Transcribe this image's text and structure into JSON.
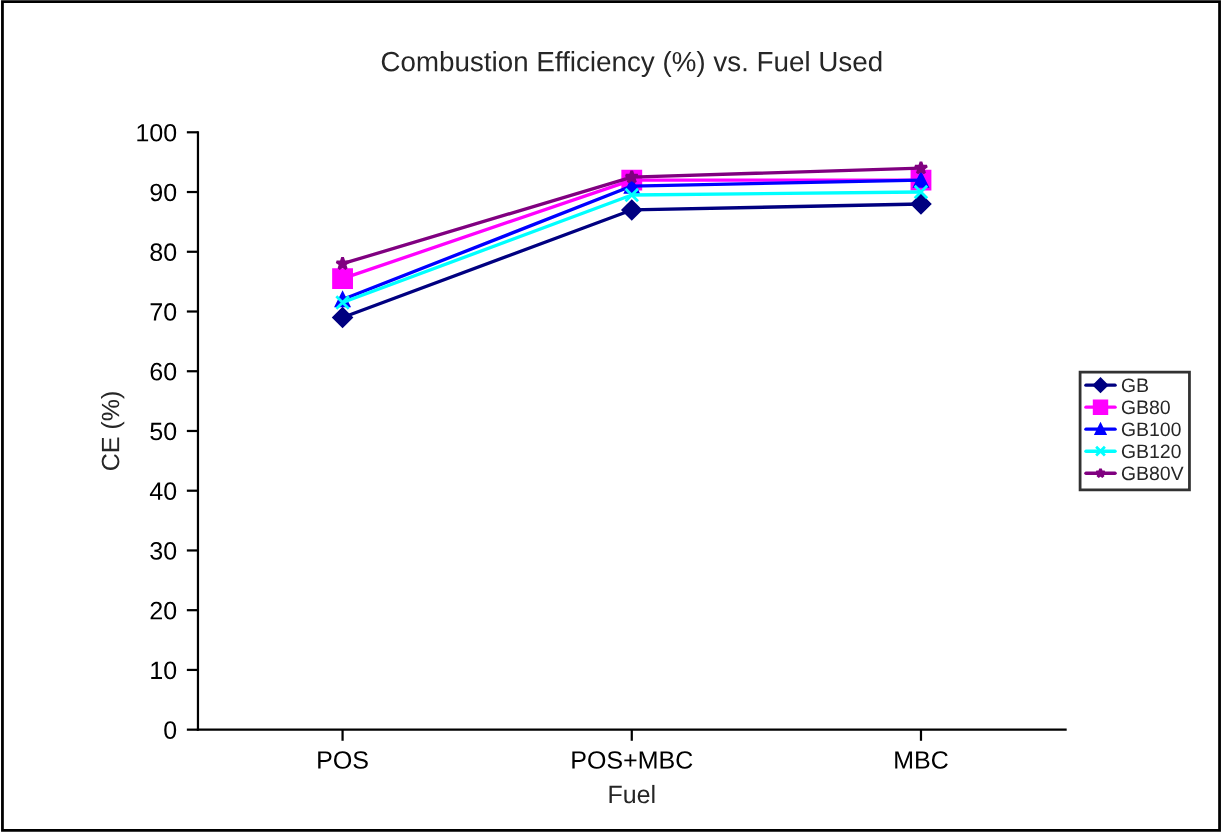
{
  "chart_data": {
    "type": "line",
    "title": "Combustion Efficiency (%) vs. Fuel Used",
    "xlabel": "Fuel",
    "ylabel": "CE (%)",
    "categories": [
      "POS",
      "POS+MBC",
      "MBC"
    ],
    "series": [
      {
        "name": "GB",
        "color": "#000080",
        "marker": "diamond",
        "values": [
          69,
          87,
          88
        ]
      },
      {
        "name": "GB80",
        "color": "#ff00ff",
        "marker": "square",
        "values": [
          75.5,
          92,
          92
        ]
      },
      {
        "name": "GB100",
        "color": "#0000ff",
        "marker": "triangle",
        "values": [
          72,
          91,
          92
        ]
      },
      {
        "name": "GB120",
        "color": "#00ffff",
        "marker": "cross",
        "values": [
          71.5,
          89.5,
          90
        ]
      },
      {
        "name": "GB80V",
        "color": "#800080",
        "marker": "star",
        "values": [
          78,
          92.5,
          94
        ]
      }
    ],
    "ylim": [
      0,
      100
    ],
    "yticks": [
      0,
      10,
      20,
      30,
      40,
      50,
      60,
      70,
      80,
      90,
      100
    ],
    "grid": false,
    "legend": "right"
  }
}
